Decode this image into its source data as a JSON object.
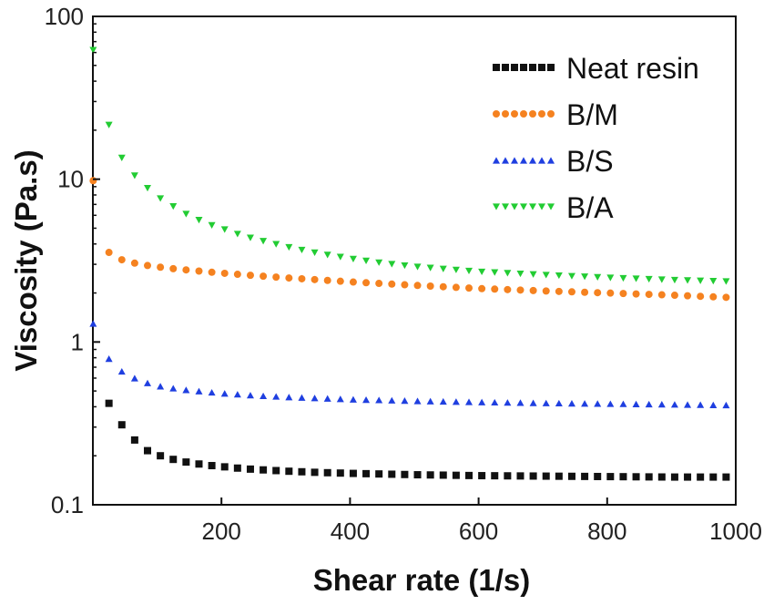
{
  "chart_data": {
    "type": "scatter",
    "title": "",
    "xlabel": "Shear rate (1/s)",
    "ylabel": "Viscosity (Pa.s)",
    "xlim": [
      0,
      1000
    ],
    "ylim": [
      0.1,
      100
    ],
    "yscale": "log",
    "grid": false,
    "legend_position": "top-right",
    "xticks": [
      {
        "value": 200,
        "label": "200"
      },
      {
        "value": 400,
        "label": "400"
      },
      {
        "value": 600,
        "label": "600"
      },
      {
        "value": 800,
        "label": "800"
      },
      {
        "value": 1000,
        "label": "1000"
      }
    ],
    "yticks": [
      {
        "value": 0.1,
        "label": "0.1"
      },
      {
        "value": 1,
        "label": "1"
      },
      {
        "value": 10,
        "label": "10"
      },
      {
        "value": 100,
        "label": "100"
      }
    ],
    "x_sample": {
      "start": 25,
      "step": 20,
      "end": 985,
      "first": 0.5
    },
    "series": [
      {
        "name": "Neat resin",
        "marker": "square",
        "color": "#111111",
        "points": [
          [
            25,
            0.42
          ],
          [
            45,
            0.31
          ],
          [
            65,
            0.25
          ],
          [
            85,
            0.215
          ],
          [
            105,
            0.2
          ],
          [
            125,
            0.19
          ],
          [
            145,
            0.183
          ],
          [
            165,
            0.178
          ],
          [
            185,
            0.174
          ],
          [
            205,
            0.171
          ],
          [
            225,
            0.168
          ],
          [
            250,
            0.165
          ],
          [
            300,
            0.161
          ],
          [
            350,
            0.158
          ],
          [
            400,
            0.156
          ],
          [
            500,
            0.153
          ],
          [
            600,
            0.151
          ],
          [
            700,
            0.15
          ],
          [
            800,
            0.149
          ],
          [
            900,
            0.148
          ],
          [
            985,
            0.148
          ]
        ]
      },
      {
        "name": "B/M",
        "marker": "circle",
        "color": "#f58220",
        "points": [
          [
            0.5,
            9.8
          ],
          [
            25,
            3.55
          ],
          [
            45,
            3.2
          ],
          [
            65,
            3.05
          ],
          [
            85,
            2.95
          ],
          [
            105,
            2.88
          ],
          [
            125,
            2.82
          ],
          [
            150,
            2.76
          ],
          [
            200,
            2.65
          ],
          [
            250,
            2.56
          ],
          [
            300,
            2.48
          ],
          [
            350,
            2.41
          ],
          [
            400,
            2.34
          ],
          [
            500,
            2.23
          ],
          [
            600,
            2.13
          ],
          [
            700,
            2.06
          ],
          [
            800,
            2.0
          ],
          [
            900,
            1.94
          ],
          [
            985,
            1.88
          ]
        ]
      },
      {
        "name": "B/S",
        "marker": "triangle-up",
        "color": "#1f3fe0",
        "points": [
          [
            0.5,
            1.3
          ],
          [
            25,
            0.79
          ],
          [
            45,
            0.66
          ],
          [
            65,
            0.6
          ],
          [
            85,
            0.56
          ],
          [
            105,
            0.535
          ],
          [
            125,
            0.52
          ],
          [
            150,
            0.505
          ],
          [
            200,
            0.485
          ],
          [
            250,
            0.47
          ],
          [
            300,
            0.46
          ],
          [
            400,
            0.445
          ],
          [
            500,
            0.435
          ],
          [
            600,
            0.428
          ],
          [
            700,
            0.422
          ],
          [
            800,
            0.418
          ],
          [
            900,
            0.414
          ],
          [
            985,
            0.41
          ]
        ]
      },
      {
        "name": "B/A",
        "marker": "triangle-down",
        "color": "#22cc33",
        "points": [
          [
            0.5,
            62
          ],
          [
            25,
            21.5
          ],
          [
            45,
            13.5
          ],
          [
            65,
            10.5
          ],
          [
            85,
            8.8
          ],
          [
            105,
            7.6
          ],
          [
            125,
            6.8
          ],
          [
            145,
            6.1
          ],
          [
            165,
            5.6
          ],
          [
            185,
            5.2
          ],
          [
            205,
            4.9
          ],
          [
            225,
            4.6
          ],
          [
            250,
            4.3
          ],
          [
            300,
            3.85
          ],
          [
            350,
            3.5
          ],
          [
            400,
            3.25
          ],
          [
            450,
            3.05
          ],
          [
            500,
            2.9
          ],
          [
            600,
            2.7
          ],
          [
            700,
            2.58
          ],
          [
            800,
            2.48
          ],
          [
            900,
            2.4
          ],
          [
            985,
            2.35
          ]
        ]
      }
    ]
  }
}
